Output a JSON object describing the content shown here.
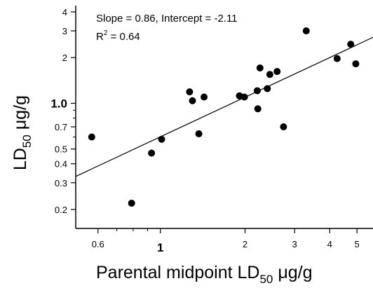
{
  "chart_data": {
    "type": "scatter",
    "xscale": "log",
    "yscale": "log",
    "xlim": [
      0.5,
      5.7
    ],
    "ylim": [
      0.15,
      4.4
    ],
    "grid": false,
    "xlabel": {
      "main": "Parental midpoint LD",
      "sub": "50",
      "unit": " μg/g"
    },
    "ylabel": {
      "main": "LD",
      "sub": "50",
      "unit": " μg/g"
    },
    "xticks": [
      {
        "value": 0.6,
        "label": "0.6",
        "emphasis": false
      },
      {
        "value": 1,
        "label": "1",
        "emphasis": true
      },
      {
        "value": 2,
        "label": "2",
        "emphasis": false
      },
      {
        "value": 3,
        "label": "3",
        "emphasis": false
      },
      {
        "value": 4,
        "label": "4",
        "emphasis": false
      },
      {
        "value": 5,
        "label": "5",
        "emphasis": false
      }
    ],
    "xminor": [
      0.7,
      0.8,
      0.9
    ],
    "yticks": [
      {
        "value": 0.2,
        "label": "0.2",
        "emphasis": false
      },
      {
        "value": 0.3,
        "label": "0.3",
        "emphasis": false
      },
      {
        "value": 0.4,
        "label": "0.4",
        "emphasis": false
      },
      {
        "value": 0.5,
        "label": "0.5",
        "emphasis": false
      },
      {
        "value": 0.7,
        "label": "0.7",
        "emphasis": false
      },
      {
        "value": 1.0,
        "label": "1.0",
        "emphasis": true
      },
      {
        "value": 2,
        "label": "2",
        "emphasis": false
      },
      {
        "value": 3,
        "label": "3",
        "emphasis": false
      },
      {
        "value": 4,
        "label": "4",
        "emphasis": false
      }
    ],
    "yminor": [
      0.6,
      0.8,
      0.9
    ],
    "annotation": {
      "line1": "Slope = 0.86, Intercept = -2.11",
      "line2_prefix": "R",
      "line2_sup": "2",
      "line2_suffix": " = 0.64"
    },
    "fit": {
      "x": [
        0.5,
        5.7
      ],
      "y": [
        0.33,
        2.72
      ]
    },
    "points": [
      {
        "x": 0.57,
        "y": 0.6
      },
      {
        "x": 0.79,
        "y": 0.22
      },
      {
        "x": 0.93,
        "y": 0.47
      },
      {
        "x": 1.01,
        "y": 0.58
      },
      {
        "x": 1.27,
        "y": 1.19
      },
      {
        "x": 1.3,
        "y": 1.04
      },
      {
        "x": 1.37,
        "y": 0.63
      },
      {
        "x": 1.43,
        "y": 1.1
      },
      {
        "x": 1.91,
        "y": 1.12
      },
      {
        "x": 1.99,
        "y": 1.1
      },
      {
        "x": 2.21,
        "y": 1.21
      },
      {
        "x": 2.22,
        "y": 0.92
      },
      {
        "x": 2.26,
        "y": 1.71
      },
      {
        "x": 2.4,
        "y": 1.25
      },
      {
        "x": 2.45,
        "y": 1.55
      },
      {
        "x": 2.6,
        "y": 1.62
      },
      {
        "x": 2.74,
        "y": 0.7
      },
      {
        "x": 3.3,
        "y": 3.0
      },
      {
        "x": 4.25,
        "y": 1.97
      },
      {
        "x": 4.75,
        "y": 2.45
      },
      {
        "x": 4.95,
        "y": 1.82
      }
    ]
  }
}
